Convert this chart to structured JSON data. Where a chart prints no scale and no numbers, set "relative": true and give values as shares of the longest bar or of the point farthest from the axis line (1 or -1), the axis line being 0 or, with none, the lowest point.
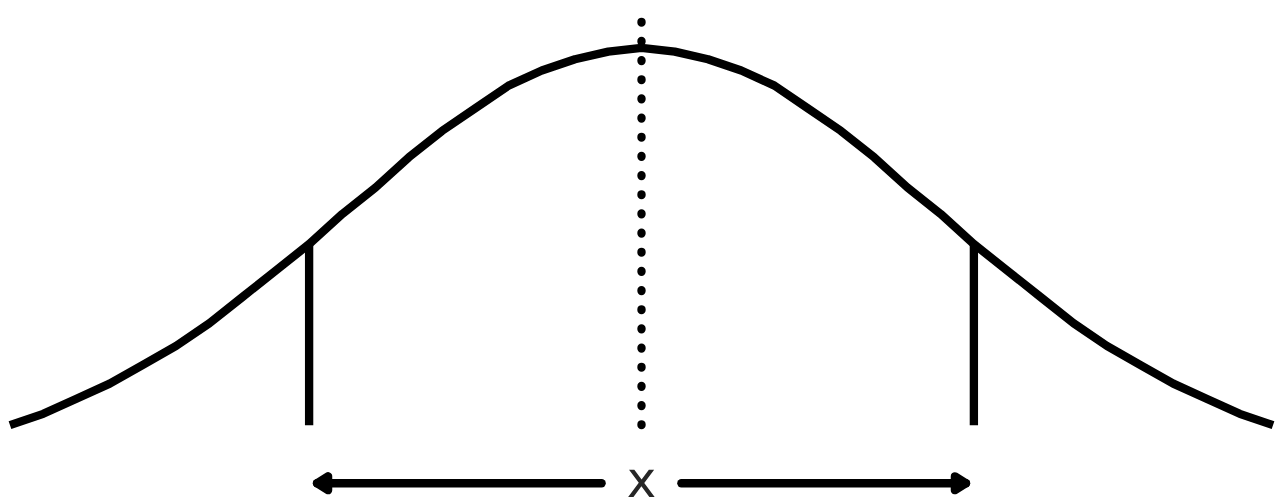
{
  "chart_data": {
    "type": "line",
    "relative": true,
    "categories": [
      null,
      null,
      null,
      null,
      null,
      null,
      null,
      null,
      null,
      null,
      null,
      null,
      null,
      null,
      null,
      null,
      null,
      null,
      null,
      null,
      null,
      null,
      null,
      null,
      null,
      null,
      null,
      null,
      null,
      null,
      null,
      null,
      null,
      null,
      null,
      null,
      null,
      null,
      null
    ],
    "series": [
      {
        "color": "#000000",
        "line_style": "solid",
        "values": [
          0,
          0.03,
          0.07,
          0.11,
          0.16,
          0.21,
          0.27,
          0.34,
          0.41,
          0.48,
          0.56,
          0.63,
          0.71,
          0.78,
          0.84,
          0.9,
          0.94,
          0.97,
          0.99,
          1,
          0.99,
          0.97,
          0.94,
          0.9,
          0.84,
          0.78,
          0.71,
          0.63,
          0.56,
          0.48,
          0.41,
          0.34,
          0.27,
          0.21,
          0.16,
          0.11,
          0.07,
          0.03,
          0
        ]
      }
    ],
    "annotations": [
      "x"
    ]
  }
}
